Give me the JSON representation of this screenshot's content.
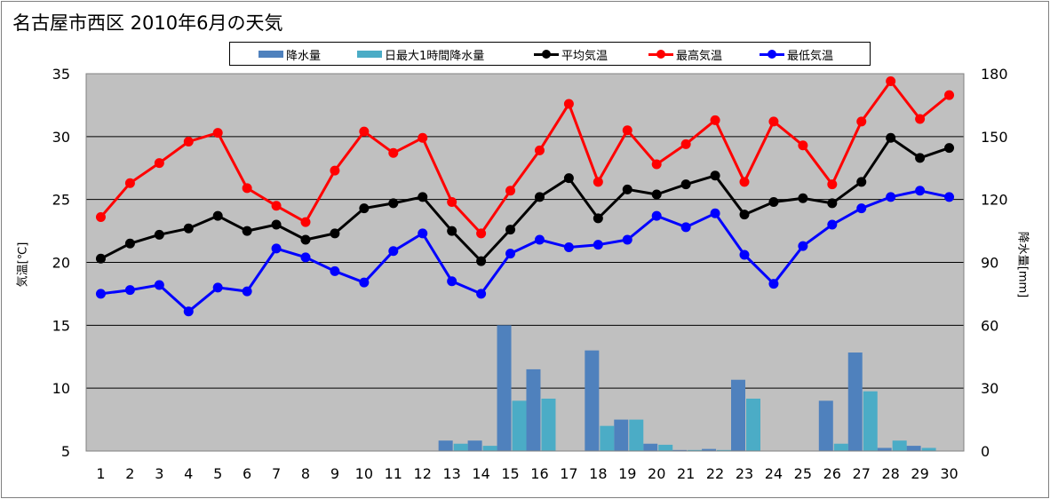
{
  "chart_data": {
    "type": "bar+line",
    "title": "名古屋市西区  2010年6月の天気",
    "x": [
      1,
      2,
      3,
      4,
      5,
      6,
      7,
      8,
      9,
      10,
      11,
      12,
      13,
      14,
      15,
      16,
      17,
      18,
      19,
      20,
      21,
      22,
      23,
      24,
      25,
      26,
      27,
      28,
      29,
      30
    ],
    "x_tick_labels": [
      "1",
      "2",
      "3",
      "4",
      "5",
      "6",
      "7",
      "8",
      "9",
      "10",
      "11",
      "12",
      "13",
      "14",
      "15",
      "16",
      "17",
      "18",
      "19",
      "20",
      "21",
      "22",
      "23",
      "24",
      "25",
      "26",
      "27",
      "28",
      "29",
      "30"
    ],
    "ylabel": "気温[℃]",
    "ylabel_right": "降水量[mm]",
    "ylim": [
      5,
      35
    ],
    "yticks": [
      5,
      10,
      15,
      20,
      25,
      30,
      35
    ],
    "ylim_right": [
      0,
      180
    ],
    "yticks_right": [
      0,
      30,
      60,
      90,
      120,
      150,
      180
    ],
    "grid": "horizontal",
    "plot_background": "#c0c0c0",
    "legend_position": "top",
    "bar_series": [
      {
        "name": "降水量",
        "color": "#4f81bd",
        "axis": "right",
        "values": [
          0,
          0,
          0,
          0,
          0,
          0,
          0,
          0,
          0,
          0,
          0,
          0,
          5,
          5,
          60,
          39,
          0,
          48,
          15,
          3.5,
          0.5,
          1,
          34,
          0,
          0,
          24,
          47,
          1.5,
          2.5,
          0
        ]
      },
      {
        "name": "日最大1時間降水量",
        "color": "#4bacc6",
        "axis": "right",
        "values": [
          0,
          0,
          0,
          0,
          0,
          0,
          0,
          0,
          0,
          0,
          0,
          0,
          3.5,
          2.5,
          24,
          25,
          0,
          12,
          15,
          3,
          0.5,
          0.5,
          25,
          0,
          0,
          3.5,
          28.5,
          5,
          1.5,
          0
        ]
      }
    ],
    "line_series": [
      {
        "name": "平均気温",
        "color": "#000000",
        "axis": "left",
        "values": [
          20.3,
          21.5,
          22.2,
          22.7,
          23.7,
          22.5,
          23.0,
          21.8,
          22.3,
          24.3,
          24.7,
          25.2,
          22.5,
          20.1,
          22.6,
          25.2,
          26.7,
          23.5,
          25.8,
          25.4,
          26.2,
          26.9,
          23.8,
          24.8,
          25.1,
          24.7,
          26.4,
          29.9,
          28.3,
          29.1
        ]
      },
      {
        "name": "最高気温",
        "color": "#ff0000",
        "axis": "left",
        "values": [
          23.6,
          26.3,
          27.9,
          29.6,
          30.3,
          25.9,
          24.5,
          23.2,
          27.3,
          30.4,
          28.7,
          29.9,
          24.8,
          22.3,
          25.7,
          28.9,
          32.6,
          26.4,
          30.5,
          27.8,
          29.4,
          31.3,
          26.4,
          31.2,
          29.3,
          26.2,
          31.2,
          34.4,
          31.4,
          33.3
        ]
      },
      {
        "name": "最低気温",
        "color": "#0000ff",
        "axis": "left",
        "values": [
          17.5,
          17.8,
          18.2,
          16.1,
          18.0,
          17.7,
          21.1,
          20.4,
          19.3,
          18.4,
          20.9,
          22.3,
          18.5,
          17.5,
          20.7,
          21.8,
          21.2,
          21.4,
          21.8,
          23.7,
          22.8,
          23.9,
          20.6,
          18.3,
          21.3,
          23.0,
          24.3,
          25.2,
          25.7,
          25.2
        ]
      }
    ]
  }
}
